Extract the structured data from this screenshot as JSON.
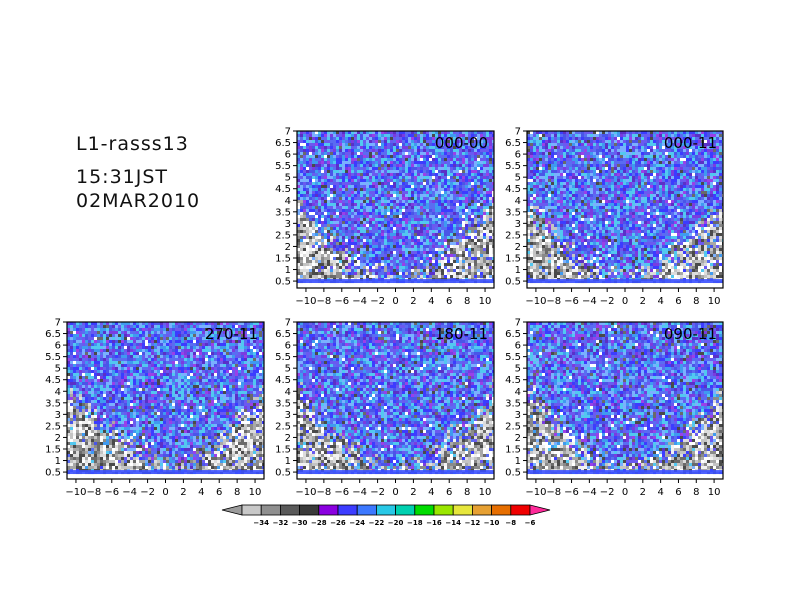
{
  "header": {
    "station": "L1-rasss13",
    "time": "15:31JST",
    "date": "02MAR2010"
  },
  "chart_data": {
    "type": "heatmap",
    "x_ticks": [
      -10,
      -8,
      -6,
      -4,
      -2,
      0,
      2,
      4,
      6,
      8,
      10
    ],
    "xlim": [
      -11,
      11
    ],
    "y_ticks": [
      "0.5",
      "1",
      "1.5",
      "2",
      "2.5",
      "3",
      "3.5",
      "4",
      "4.5",
      "5",
      "5.5",
      "6",
      "6.5",
      "7"
    ],
    "ylim": [
      0.2,
      7
    ],
    "panels": [
      {
        "label": "000-00",
        "position": "top-middle"
      },
      {
        "label": "000-11",
        "position": "top-right"
      },
      {
        "label": "270-11",
        "position": "bottom-left"
      },
      {
        "label": "180-11",
        "position": "bottom-middle"
      },
      {
        "label": "090-11",
        "position": "bottom-right"
      }
    ],
    "colorbar": {
      "levels": [
        "-34",
        "-32",
        "-30",
        "-28",
        "-26",
        "-24",
        "-22",
        "-20",
        "-18",
        "-16",
        "-14",
        "-12",
        "-10",
        "-8",
        "-6"
      ],
      "colors": [
        "#9b9b9b",
        "#c8c8c8",
        "#8f8f8f",
        "#5a5a5a",
        "#3a3a3a",
        "#8a00e0",
        "#3c3cff",
        "#3c78ff",
        "#28c8e6",
        "#00d0b0",
        "#00dc00",
        "#9ae600",
        "#e6e63c",
        "#e6a032",
        "#e66e00",
        "#f00000",
        "#ff2a9a"
      ]
    }
  }
}
